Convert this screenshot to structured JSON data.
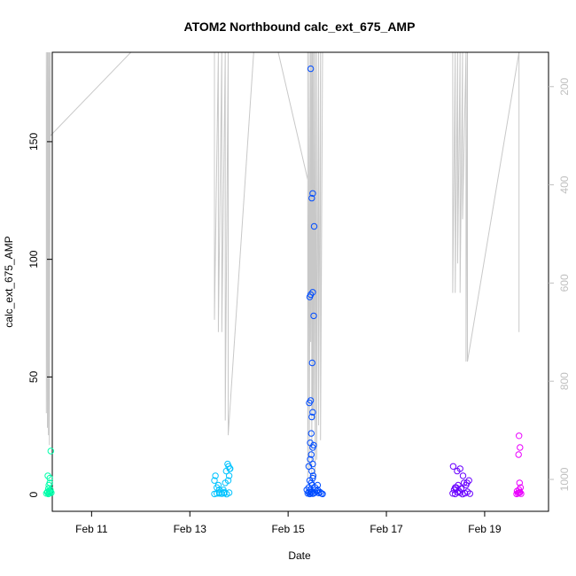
{
  "chart_data": {
    "type": "scatter",
    "title": "ATOM2 Northbound calc_ext_675_AMP",
    "xlabel": "Date",
    "ylabel": "calc_ext_675_AMP",
    "x_tick_labels": [
      "Feb 11",
      "Feb 13",
      "Feb 15",
      "Feb 17",
      "Feb 19"
    ],
    "y_tick_labels": [
      "0",
      "50",
      "100",
      "150"
    ],
    "y2_tick_labels": [
      "200",
      "400",
      "600",
      "800",
      "1000"
    ],
    "xlim": [
      10.2,
      20.3
    ],
    "ylim": [
      -7.1,
      188
    ],
    "y2lim": [
      1065,
      130
    ],
    "y2_reversed": true,
    "grid": false,
    "marker": "open-circle",
    "secondary_line_color": "#c8c8c8",
    "groups": [
      {
        "color": "#00ffaa",
        "x": [
          10.08,
          10.1,
          10.12,
          10.14,
          10.16,
          10.18,
          10.1,
          10.12,
          10.14,
          10.16,
          10.13,
          10.15,
          10.15,
          10.11,
          10.17
        ],
        "y": [
          0.5,
          1,
          0.3,
          1.5,
          2,
          0.8,
          1.2,
          2.5,
          0.6,
          1.1,
          4,
          5,
          7,
          8,
          18.5
        ]
      },
      {
        "color": "#00c3ff",
        "x": [
          13.5,
          13.55,
          13.6,
          13.65,
          13.7,
          13.75,
          13.8,
          13.55,
          13.6,
          13.72,
          13.78,
          13.8,
          13.82,
          13.5,
          13.52,
          13.58,
          13.68,
          13.74,
          13.77,
          13.79,
          13.81,
          13.7,
          13.6
        ],
        "y": [
          0.3,
          0.5,
          1,
          0.4,
          0.6,
          0.2,
          0.8,
          3,
          2,
          5,
          6,
          8,
          11,
          6,
          8,
          4,
          2,
          10,
          13,
          12,
          11,
          1,
          0.5
        ]
      },
      {
        "color": "#004cff",
        "x": [
          15.38,
          15.4,
          15.42,
          15.44,
          15.46,
          15.48,
          15.5,
          15.52,
          15.55,
          15.58,
          15.6,
          15.62,
          15.65,
          15.68,
          15.7,
          15.42,
          15.45,
          15.47,
          15.5,
          15.52,
          15.45,
          15.47,
          15.48,
          15.5,
          15.43,
          15.46,
          15.49,
          15.52,
          15.44,
          15.46,
          15.5,
          15.53,
          15.48,
          15.5,
          15.46,
          15.48,
          15.51,
          15.44,
          15.47,
          15.49,
          15.42,
          15.5,
          15.45,
          15.47,
          15.5,
          15.55,
          15.6
        ],
        "y": [
          2,
          0.5,
          1,
          0.3,
          0.8,
          1.2,
          0.4,
          0.6,
          0.9,
          1.5,
          2,
          0.7,
          1,
          0.5,
          0.3,
          12,
          15,
          17,
          20,
          21,
          22,
          26,
          33,
          35,
          39,
          40,
          56,
          76,
          84,
          85,
          86,
          114,
          126,
          128,
          181,
          10,
          8,
          6,
          5,
          4,
          3,
          7,
          2,
          1,
          13,
          3,
          4
        ]
      },
      {
        "color": "#6a00ff",
        "x": [
          18.35,
          18.4,
          18.45,
          18.5,
          18.55,
          18.6,
          18.65,
          18.7,
          18.38,
          18.42,
          18.48,
          18.52,
          18.58,
          18.62,
          18.68,
          18.36,
          18.44,
          18.5,
          18.56,
          18.64,
          18.4,
          18.46
        ],
        "y": [
          0.5,
          0.3,
          1,
          0.8,
          0.2,
          0.6,
          1.2,
          0.4,
          2,
          3,
          1.5,
          2.5,
          5,
          4,
          6,
          12,
          10,
          11,
          8,
          5,
          3,
          4
        ]
      },
      {
        "color": "#ea00ff",
        "x": [
          19.65,
          19.68,
          19.7,
          19.72,
          19.74,
          19.66,
          19.7,
          19.73,
          19.71,
          19.69,
          19.72,
          19.7,
          19.71
        ],
        "y": [
          0.3,
          0.5,
          0.8,
          1,
          0.4,
          1.5,
          2,
          3,
          5,
          17,
          20,
          25,
          1
        ]
      }
    ]
  }
}
